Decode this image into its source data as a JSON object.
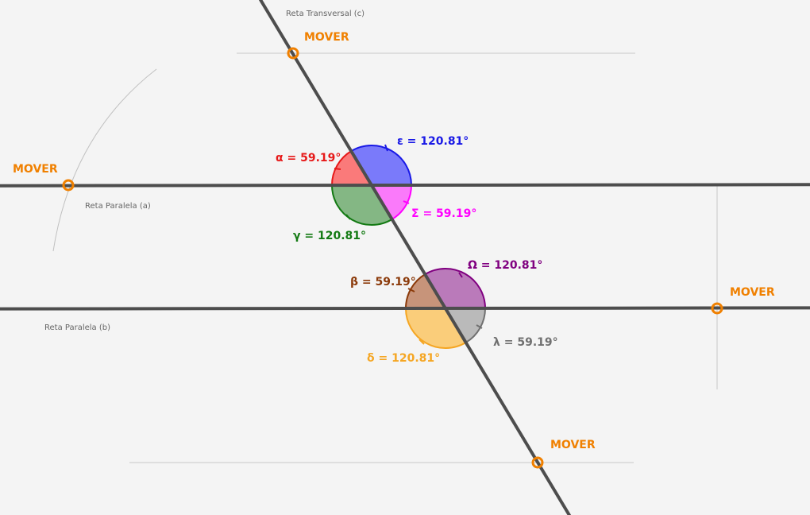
{
  "canvas": {
    "background": "#f4f4f4"
  },
  "labels": {
    "transversal": "Reta Transversal (c)",
    "parallel_a": "Reta Paralela (a)",
    "parallel_b": "Reta Paralela (b)"
  },
  "movers": {
    "top": "MOVER",
    "left": "MOVER",
    "right": "MOVER",
    "bottom": "MOVER",
    "color": "#f08000"
  },
  "angles": {
    "alpha": {
      "text": "α = 59.19°",
      "color": "#e61919"
    },
    "epsilon": {
      "text": "ε = 120.81°",
      "color": "#1919e6"
    },
    "sigma": {
      "text": "Σ = 59.19°",
      "color": "#ff00ff"
    },
    "gamma": {
      "text": "γ = 120.81°",
      "color": "#137a13"
    },
    "beta": {
      "text": "β = 59.19°",
      "color": "#8b3a0a"
    },
    "omega": {
      "text": "Ω = 120.81°",
      "color": "#800080"
    },
    "lambda": {
      "text": "λ = 59.19°",
      "color": "#707070"
    },
    "delta": {
      "text": "δ = 120.81°",
      "color": "#f5a623"
    }
  }
}
